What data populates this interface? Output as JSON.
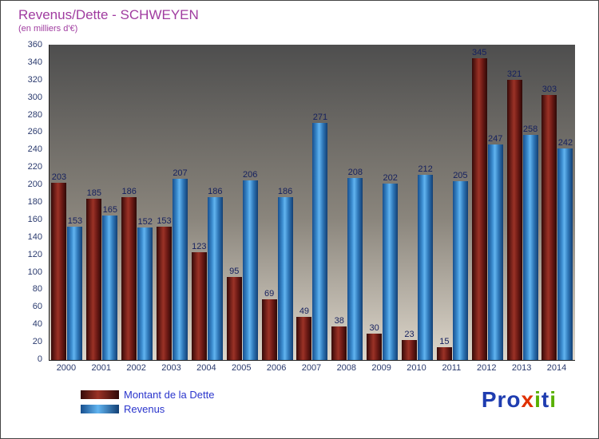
{
  "title": "Revenus/Dette - SCHWEYEN",
  "subtitle": "(en milliers d'€)",
  "chart_data": {
    "type": "bar",
    "title": "Revenus/Dette - SCHWEYEN",
    "subtitle": "(en milliers d'€)",
    "categories": [
      "2000",
      "2001",
      "2002",
      "2003",
      "2004",
      "2005",
      "2006",
      "2007",
      "2008",
      "2009",
      "2010",
      "2011",
      "2012",
      "2013",
      "2014"
    ],
    "series": [
      {
        "name": "Montant de la Dette",
        "color": "#7a1f18",
        "values": [
          203,
          185,
          186,
          153,
          123,
          95,
          69,
          49,
          38,
          30,
          23,
          15,
          345,
          321,
          303
        ]
      },
      {
        "name": "Revenus",
        "color": "#3f96d8",
        "values": [
          153,
          165,
          152,
          207,
          186,
          206,
          186,
          271,
          208,
          202,
          212,
          205,
          247,
          258,
          242
        ]
      }
    ],
    "ylim": [
      0,
      360
    ],
    "ytick_step": 20,
    "grid": false,
    "legend_position": "bottom-left",
    "value_labels": true
  },
  "legend": {
    "items": [
      {
        "label": "Montant de la Dette"
      },
      {
        "label": "Revenus"
      }
    ]
  },
  "logo": {
    "text": "Proxiti",
    "letters": [
      {
        "ch": "P",
        "color": "#1f3db0"
      },
      {
        "ch": "r",
        "color": "#1f3db0"
      },
      {
        "ch": "o",
        "color": "#1f3db0"
      },
      {
        "ch": "x",
        "color": "#e03000"
      },
      {
        "ch": "i",
        "color": "#58b000"
      },
      {
        "ch": "t",
        "color": "#1f3db0"
      },
      {
        "ch": "i",
        "color": "#58b000"
      }
    ]
  }
}
